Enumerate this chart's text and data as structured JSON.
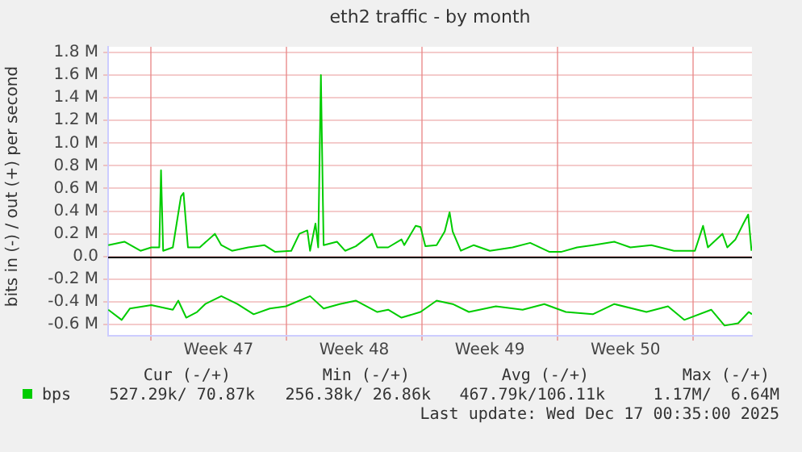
{
  "chart_data": {
    "type": "line",
    "title": "eth2 traffic - by month",
    "ylabel": "bits in (-) / out (+) per second",
    "xlim": [
      "2025-11-13T19:12",
      "2025-12-17T00:35"
    ],
    "xticks": [
      {
        "value": "2025-11-16",
        "label": null
      },
      {
        "value": "2025-11-19T12:00",
        "label": "Week 47"
      },
      {
        "value": "2025-11-23",
        "label": null
      },
      {
        "value": "2025-11-26T12:00",
        "label": "Week 48"
      },
      {
        "value": "2025-11-30",
        "label": null
      },
      {
        "value": "2025-12-03T12:00",
        "label": "Week 49"
      },
      {
        "value": "2025-12-07",
        "label": null
      },
      {
        "value": "2025-12-10T12:00",
        "label": "Week 50"
      },
      {
        "value": "2025-12-14",
        "label": null
      }
    ],
    "ylim": [
      -0.7,
      1.85
    ],
    "yticks": [
      {
        "value": -0.6,
        "label": "-0.6 M"
      },
      {
        "value": -0.4,
        "label": "-0.4 M"
      },
      {
        "value": -0.2,
        "label": "-0.2 M"
      },
      {
        "value": 0,
        "label": "0.0"
      },
      {
        "value": 0.2,
        "label": "0.2 M"
      },
      {
        "value": 0.4,
        "label": "0.4 M"
      },
      {
        "value": 0.6,
        "label": "0.6 M"
      },
      {
        "value": 0.8,
        "label": "0.8 M"
      },
      {
        "value": 1.0,
        "label": "1.0 M"
      },
      {
        "value": 1.2,
        "label": "1.2 M"
      },
      {
        "value": 1.4,
        "label": "1.4 M"
      },
      {
        "value": 1.6,
        "label": "1.6 M"
      },
      {
        "value": 1.8,
        "label": "1.8 M"
      }
    ],
    "grid": true,
    "legend": "bottom",
    "marker": "none",
    "line_style": "solid",
    "ref_lines": [
      {
        "axis": "y",
        "value": 0,
        "color": "#000000"
      }
    ],
    "series": [
      {
        "name": "bps",
        "color": "#00cc00",
        "x": [
          "2025-11-13T19:26",
          "2025-11-14T15:22",
          "2025-11-15T11:17",
          "2025-11-16T00:43",
          "2025-11-16T10:34",
          "2025-11-16T12:43",
          "2025-11-16T15:22",
          "2025-11-17T03:22",
          "2025-11-17T13:26",
          "2025-11-17T16:34",
          "2025-11-17T22:05",
          "2025-11-18T12:43",
          "2025-11-19T07:26",
          "2025-11-19T15:22",
          "2025-11-20T04:34",
          "2025-11-21T00:43",
          "2025-11-21T20:38",
          "2025-11-22T10:05",
          "2025-11-23T06:00",
          "2025-11-23T16:05",
          "2025-11-24T01:55",
          "2025-11-24T05:17",
          "2025-11-24T12:00",
          "2025-11-24T15:22",
          "2025-11-24T18:43",
          "2025-11-24T22:05",
          "2025-11-25T14:38",
          "2025-11-26T00:43",
          "2025-11-26T13:55",
          "2025-11-27T10:05",
          "2025-11-27T16:34",
          "2025-11-28T06:00",
          "2025-11-28T22:34",
          "2025-11-29T01:55",
          "2025-11-29T16:05",
          "2025-11-29T22:05",
          "2025-11-30T04:05",
          "2025-11-30T18:00",
          "2025-12-01T04:05",
          "2025-12-01T10:05",
          "2025-12-01T13:55",
          "2025-12-02T00:00",
          "2025-12-02T16:05",
          "2025-12-03T12:00",
          "2025-12-04T16:05",
          "2025-12-05T13:55",
          "2025-12-06T13:55",
          "2025-12-07T04:05",
          "2025-12-08T00:00",
          "2025-12-08T19:55",
          "2025-12-09T22:05",
          "2025-12-10T18:00",
          "2025-12-11T19:55",
          "2025-12-13T00:00",
          "2025-12-14T01:55",
          "2025-12-14T12:00",
          "2025-12-14T18:00",
          "2025-12-15T12:00",
          "2025-12-15T18:00",
          "2025-12-16T04:05",
          "2025-12-16T13:55",
          "2025-12-16T19:55",
          "2025-12-17T00:00"
        ],
        "values": [
          0.1,
          0.13,
          0.05,
          0.08,
          0.08,
          0.76,
          0.05,
          0.08,
          0.53,
          0.56,
          0.08,
          0.08,
          0.2,
          0.1,
          0.05,
          0.08,
          0.1,
          0.04,
          0.05,
          0.2,
          0.23,
          0.05,
          0.29,
          0.08,
          1.6,
          0.1,
          0.13,
          0.05,
          0.09,
          0.2,
          0.08,
          0.08,
          0.15,
          0.1,
          0.27,
          0.26,
          0.09,
          0.1,
          0.22,
          0.39,
          0.22,
          0.05,
          0.1,
          0.05,
          0.08,
          0.12,
          0.04,
          0.04,
          0.08,
          0.1,
          0.13,
          0.08,
          0.1,
          0.05,
          0.05,
          0.27,
          0.08,
          0.2,
          0.08,
          0.15,
          0.29,
          0.37,
          0.05
        ]
      },
      {
        "color": "#00cc00",
        "x": [
          "2025-11-13T19:26",
          "2025-11-14T12:00",
          "2025-11-14T22:05",
          "2025-11-16T00:43",
          "2025-11-17T03:22",
          "2025-11-17T10:05",
          "2025-11-17T19:55",
          "2025-11-18T09:22",
          "2025-11-18T19:26",
          "2025-11-19T15:22",
          "2025-11-20T11:17",
          "2025-11-21T07:26",
          "2025-11-22T03:22",
          "2025-11-22T23:17",
          "2025-11-24T05:17",
          "2025-11-24T22:05",
          "2025-11-25T18:00",
          "2025-11-26T13:55",
          "2025-11-27T16:34",
          "2025-11-28T06:00",
          "2025-11-28T22:34",
          "2025-11-29T22:05",
          "2025-11-30T18:00",
          "2025-12-01T13:55",
          "2025-12-02T10:05",
          "2025-12-03T19:26",
          "2025-12-05T04:34",
          "2025-12-06T07:26",
          "2025-12-07T10:05",
          "2025-12-08T19:26",
          "2025-12-09T22:05",
          "2025-12-11T13:55",
          "2025-12-12T16:34",
          "2025-12-13T12:43",
          "2025-12-14T22:05",
          "2025-12-15T14:38",
          "2025-12-16T07:26",
          "2025-12-16T20:38",
          "2025-12-17T00:35"
        ],
        "values": [
          -0.47,
          -0.56,
          -0.46,
          -0.43,
          -0.47,
          -0.39,
          -0.54,
          -0.49,
          -0.42,
          -0.35,
          -0.42,
          -0.51,
          -0.46,
          -0.44,
          -0.35,
          -0.46,
          -0.42,
          -0.39,
          -0.49,
          -0.47,
          -0.54,
          -0.49,
          -0.39,
          -0.42,
          -0.49,
          -0.44,
          -0.47,
          -0.42,
          -0.49,
          -0.51,
          -0.42,
          -0.49,
          -0.44,
          -0.56,
          -0.47,
          -0.61,
          -0.59,
          -0.49,
          -0.51
        ]
      }
    ],
    "annotations": [
      "Cur (-/+)",
      "Min (-/+)",
      "Avg (-/+)",
      "Max (-/+)",
      "527.29k/ 70.87k",
      "256.38k/ 26.86k",
      "467.79k/106.11k",
      "1.17M/  6.64M",
      "Last update: Wed Dec 17 00:35:00 2025"
    ]
  }
}
